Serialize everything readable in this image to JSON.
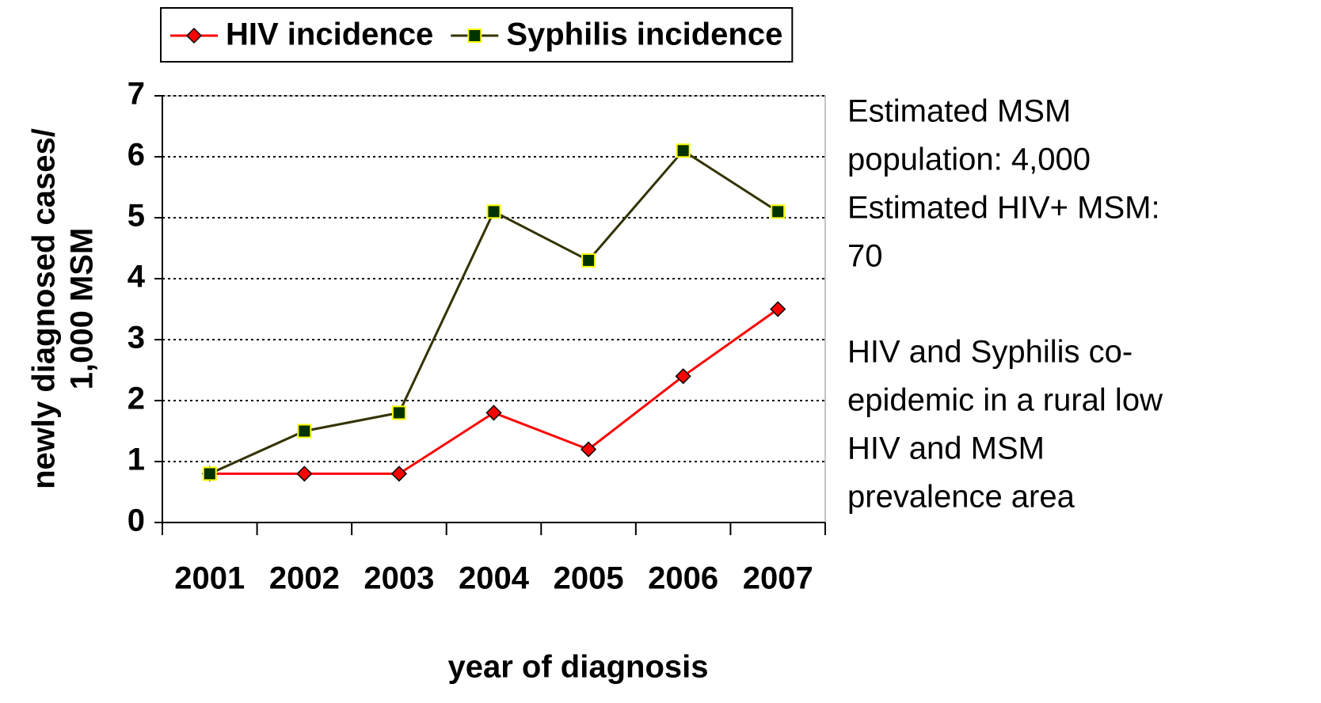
{
  "chart_data": {
    "type": "line",
    "categories": [
      "2001",
      "2002",
      "2003",
      "2004",
      "2005",
      "2006",
      "2007"
    ],
    "series": [
      {
        "name": "HIV incidence",
        "color": "#ff0000",
        "marker_color": "#ff0000",
        "marker": "diamond",
        "values": [
          0.8,
          0.8,
          0.8,
          1.8,
          1.2,
          2.4,
          3.5
        ]
      },
      {
        "name": "Syphilis incidence",
        "color": "#333300",
        "marker_color": "#003300",
        "marker_edge": "#ffff00",
        "marker": "square",
        "values": [
          0.8,
          1.5,
          1.8,
          5.1,
          4.3,
          6.1,
          5.1
        ]
      }
    ],
    "ylim": [
      0,
      7
    ],
    "yticks": [
      0,
      1,
      2,
      3,
      4,
      5,
      6,
      7
    ],
    "grid": true,
    "ylabel": [
      "newly diagnosed cases/",
      "1,000 MSM"
    ],
    "xlabel": "year of diagnosis",
    "legend": "top",
    "annotations": [
      [
        "Estimated MSM",
        "population: 4,000",
        "Estimated HIV+ MSM:",
        "70"
      ],
      [
        "HIV and Syphilis co-",
        "epidemic in a rural low",
        "HIV and MSM",
        "prevalence area"
      ]
    ]
  }
}
